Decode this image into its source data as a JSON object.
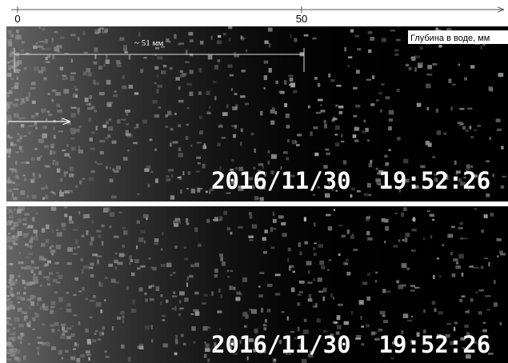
{
  "ruler": {
    "ticks": [
      0,
      50
    ]
  },
  "measure_label": "~ 51 мм",
  "depth_label": "Глубина в воде, мм",
  "panels": [
    {
      "timestamp": "2016/11/30  19:52:26"
    },
    {
      "timestamp": "2016/11/30  19:52:26"
    }
  ]
}
